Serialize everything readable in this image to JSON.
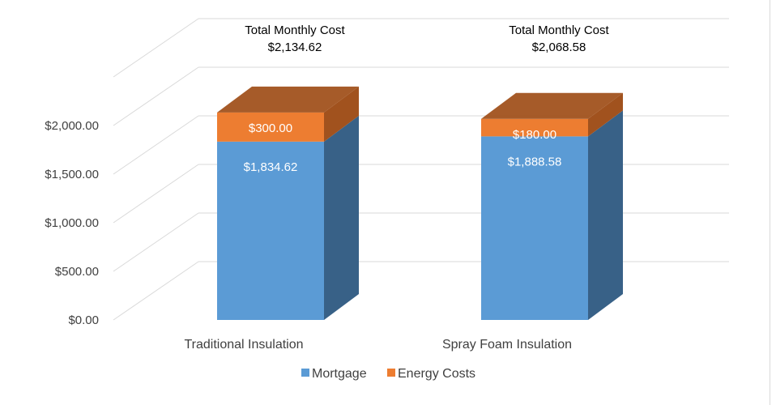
{
  "chart_data": {
    "type": "bar",
    "stacked": true,
    "three_d": true,
    "categories": [
      "Traditional Insulation",
      "Spray Foam Insulation"
    ],
    "series": [
      {
        "name": "Mortgage",
        "values": [
          1834.62,
          1888.58
        ],
        "labels": [
          "$1,834.62",
          "$1,888.58"
        ],
        "color": "#5b9bd5",
        "side_color": "#386187"
      },
      {
        "name": "Energy Costs",
        "values": [
          300.0,
          180.0
        ],
        "labels": [
          "$300.00",
          "$180.00"
        ],
        "color": "#ed7d31",
        "side_color": "#a1521e"
      }
    ],
    "totals": [
      {
        "title": "Total Monthly Cost",
        "value": "$2,134.62"
      },
      {
        "title": "Total Monthly Cost",
        "value": "$2,068.58"
      }
    ],
    "ylim": [
      0,
      2500
    ],
    "y_ticks": [
      {
        "value": 0,
        "label": "$0.00"
      },
      {
        "value": 500,
        "label": "$500.00"
      },
      {
        "value": 1000,
        "label": "$1,000.00"
      },
      {
        "value": 1500,
        "label": "$1,500.00"
      },
      {
        "value": 2000,
        "label": "$2,000.00"
      }
    ],
    "grid": true,
    "legend": "bottom",
    "colors": {
      "gridline": "#d9d9d9",
      "text": "#404040",
      "label_text": "#ffffff"
    }
  }
}
